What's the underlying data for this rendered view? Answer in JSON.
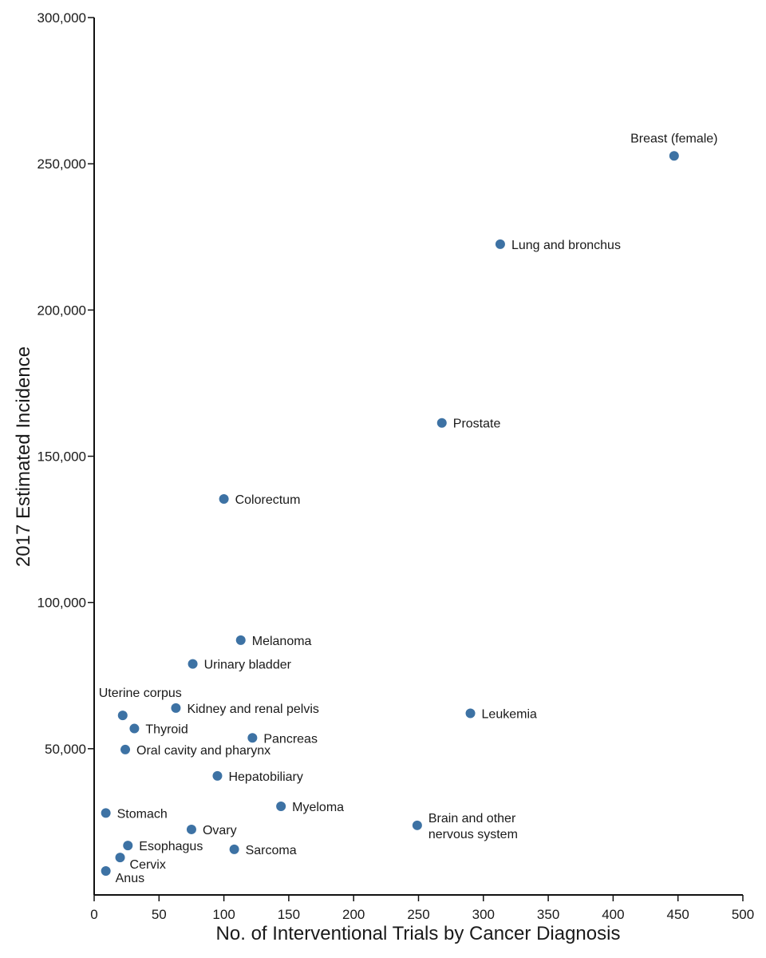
{
  "chart_data": {
    "type": "scatter",
    "title": "",
    "xlabel": "No. of Interventional Trials by Cancer Diagnosis",
    "ylabel": "2017 Estimated Incidence",
    "xlim": [
      0,
      500
    ],
    "ylim": [
      0,
      300000
    ],
    "xticks": [
      0,
      50,
      100,
      150,
      200,
      250,
      300,
      350,
      400,
      450,
      500
    ],
    "yticks": [
      50000,
      100000,
      150000,
      200000,
      250000,
      300000
    ],
    "xtick_labels": [
      "0",
      "50",
      "100",
      "150",
      "200",
      "250",
      "300",
      "350",
      "400",
      "450",
      "500"
    ],
    "ytick_labels": [
      "50,000",
      "100,000",
      "150,000",
      "200,000",
      "250,000",
      "300,000"
    ],
    "grid": false,
    "marker_color": "#3d72a4",
    "points": [
      {
        "label": "Breast (female)",
        "x": 447,
        "y": 252700,
        "label_pos": "above"
      },
      {
        "label": "Lung and bronchus",
        "x": 313,
        "y": 222500,
        "label_pos": "right"
      },
      {
        "label": "Prostate",
        "x": 268,
        "y": 161400,
        "label_pos": "right"
      },
      {
        "label": "Colorectum",
        "x": 100,
        "y": 135400,
        "label_pos": "right"
      },
      {
        "label": "Melanoma",
        "x": 113,
        "y": 87100,
        "label_pos": "right"
      },
      {
        "label": "Urinary bladder",
        "x": 76,
        "y": 79000,
        "label_pos": "right"
      },
      {
        "label": "Uterine corpus",
        "x": 22,
        "y": 61400,
        "label_pos": "above-left"
      },
      {
        "label": "Kidney and renal pelvis",
        "x": 63,
        "y": 63900,
        "label_pos": "right"
      },
      {
        "label": "Leukemia",
        "x": 290,
        "y": 62100,
        "label_pos": "right"
      },
      {
        "label": "Thyroid",
        "x": 31,
        "y": 56900,
        "label_pos": "right"
      },
      {
        "label": "Pancreas",
        "x": 122,
        "y": 53700,
        "label_pos": "right"
      },
      {
        "label": "Oral cavity and pharynx",
        "x": 24,
        "y": 49700,
        "label_pos": "right"
      },
      {
        "label": "Hepatobiliary",
        "x": 95,
        "y": 40700,
        "label_pos": "right"
      },
      {
        "label": "Myeloma",
        "x": 144,
        "y": 30300,
        "label_pos": "right"
      },
      {
        "label": "Stomach",
        "x": 9,
        "y": 28000,
        "label_pos": "right"
      },
      {
        "label": "Brain and other nervous system",
        "x": 249,
        "y": 23800,
        "label_pos": "right-twoline"
      },
      {
        "label": "Ovary",
        "x": 75,
        "y": 22400,
        "label_pos": "right"
      },
      {
        "label": "Esophagus",
        "x": 26,
        "y": 16900,
        "label_pos": "right"
      },
      {
        "label": "Sarcoma",
        "x": 108,
        "y": 15600,
        "label_pos": "right"
      },
      {
        "label": "Cervix",
        "x": 20,
        "y": 12800,
        "label_pos": "below-right"
      },
      {
        "label": "Anus",
        "x": 9,
        "y": 8200,
        "label_pos": "below-right"
      }
    ]
  }
}
